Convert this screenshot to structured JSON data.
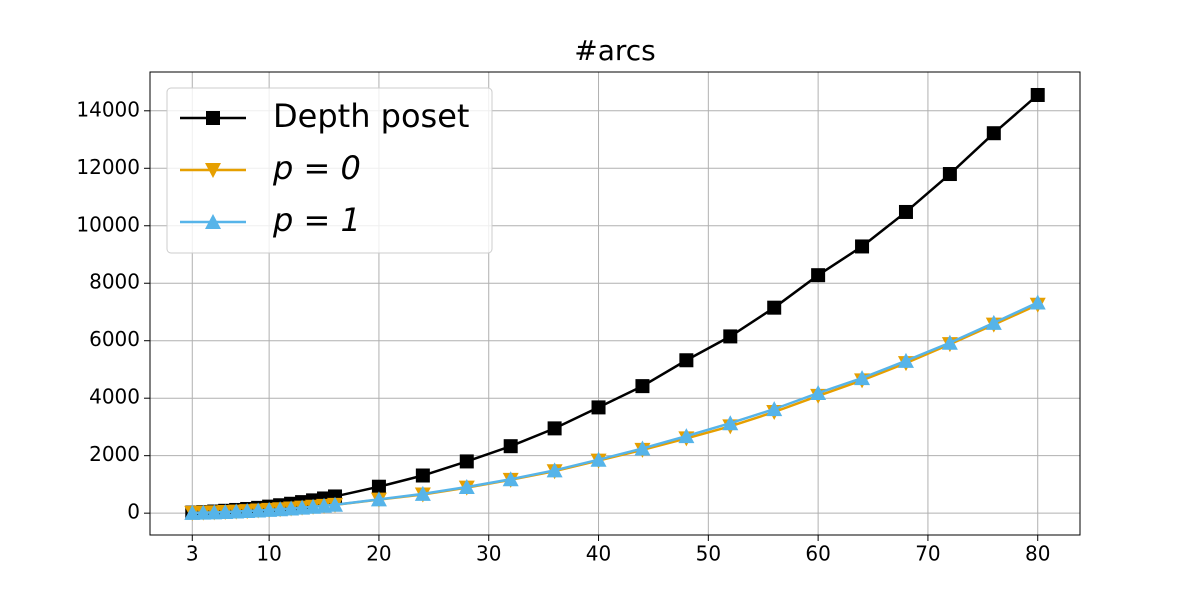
{
  "chart_data": {
    "type": "line",
    "title": "#arcs",
    "x": [
      3,
      4,
      5,
      6,
      7,
      8,
      9,
      10,
      11,
      12,
      13,
      14,
      15,
      16,
      20,
      24,
      28,
      32,
      36,
      40,
      44,
      48,
      52,
      56,
      60,
      64,
      68,
      72,
      76,
      80
    ],
    "series": [
      {
        "name": "Depth poset",
        "color": "#000000",
        "marker": "square",
        "values": [
          20,
          36,
          57,
          82,
          111,
          145,
          184,
          227,
          275,
          327,
          384,
          445,
          511,
          581,
          920,
          1310,
          1800,
          2330,
          2950,
          3680,
          4420,
          5320,
          6150,
          7150,
          8280,
          9280,
          10480,
          11800,
          13220,
          14550
        ]
      },
      {
        "name": "p = 0",
        "color": "#e69f00",
        "marker": "triangle-down",
        "values": [
          10,
          18,
          28,
          41,
          55,
          72,
          92,
          113,
          137,
          163,
          191,
          221,
          254,
          289,
          470,
          650,
          890,
          1160,
          1460,
          1830,
          2200,
          2600,
          3020,
          3520,
          4080,
          4620,
          5220,
          5880,
          6560,
          7250
        ]
      },
      {
        "name": "p = 1",
        "color": "#56b4e9",
        "marker": "triangle-up",
        "values": [
          10,
          18,
          29,
          41,
          56,
          73,
          92,
          114,
          138,
          164,
          193,
          224,
          257,
          292,
          480,
          670,
          910,
          1180,
          1490,
          1860,
          2250,
          2680,
          3130,
          3620,
          4180,
          4700,
          5300,
          5930,
          6620,
          7330
        ]
      }
    ],
    "xlim": [
      -0.85,
      83.85
    ],
    "ylim": [
      -760,
      15350
    ],
    "xticks": [
      3,
      10,
      20,
      30,
      40,
      50,
      60,
      70,
      80
    ],
    "yticks": [
      0,
      2000,
      4000,
      6000,
      8000,
      10000,
      12000,
      14000
    ],
    "grid": true,
    "legend": "upper left"
  }
}
